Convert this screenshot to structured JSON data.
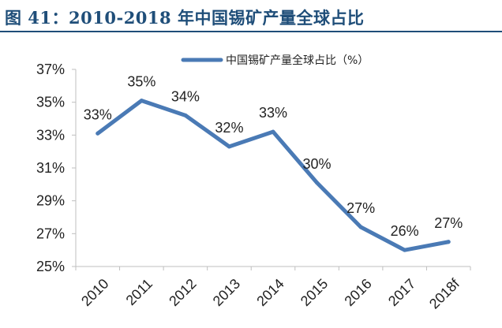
{
  "figure_title": "图 41：2010-2018 年中国锡矿产量全球占比",
  "colors": {
    "title": "#1f4e79",
    "series": "#4a7ab5",
    "axis": "#bfbfbf",
    "text": "#222222"
  },
  "chart_data": {
    "type": "line",
    "title": "",
    "xlabel": "",
    "ylabel": "",
    "categories": [
      "2010",
      "2011",
      "2012",
      "2013",
      "2014",
      "2015",
      "2016",
      "2017",
      "2018f"
    ],
    "series": [
      {
        "name": "中国锡矿产量全球占比（%）",
        "values": [
          33.1,
          35.1,
          34.2,
          32.3,
          33.2,
          30.1,
          27.4,
          26.0,
          26.5
        ],
        "data_labels": [
          "33%",
          "35%",
          "34%",
          "32%",
          "33%",
          "30%",
          "27%",
          "26%",
          "27%"
        ]
      }
    ],
    "ylim": [
      25,
      37
    ],
    "yticks": [
      25,
      27,
      29,
      31,
      33,
      35,
      37
    ],
    "ytick_labels": [
      "25%",
      "27%",
      "29%",
      "31%",
      "33%",
      "35%",
      "37%"
    ],
    "grid": false,
    "legend_position": "top-right"
  }
}
